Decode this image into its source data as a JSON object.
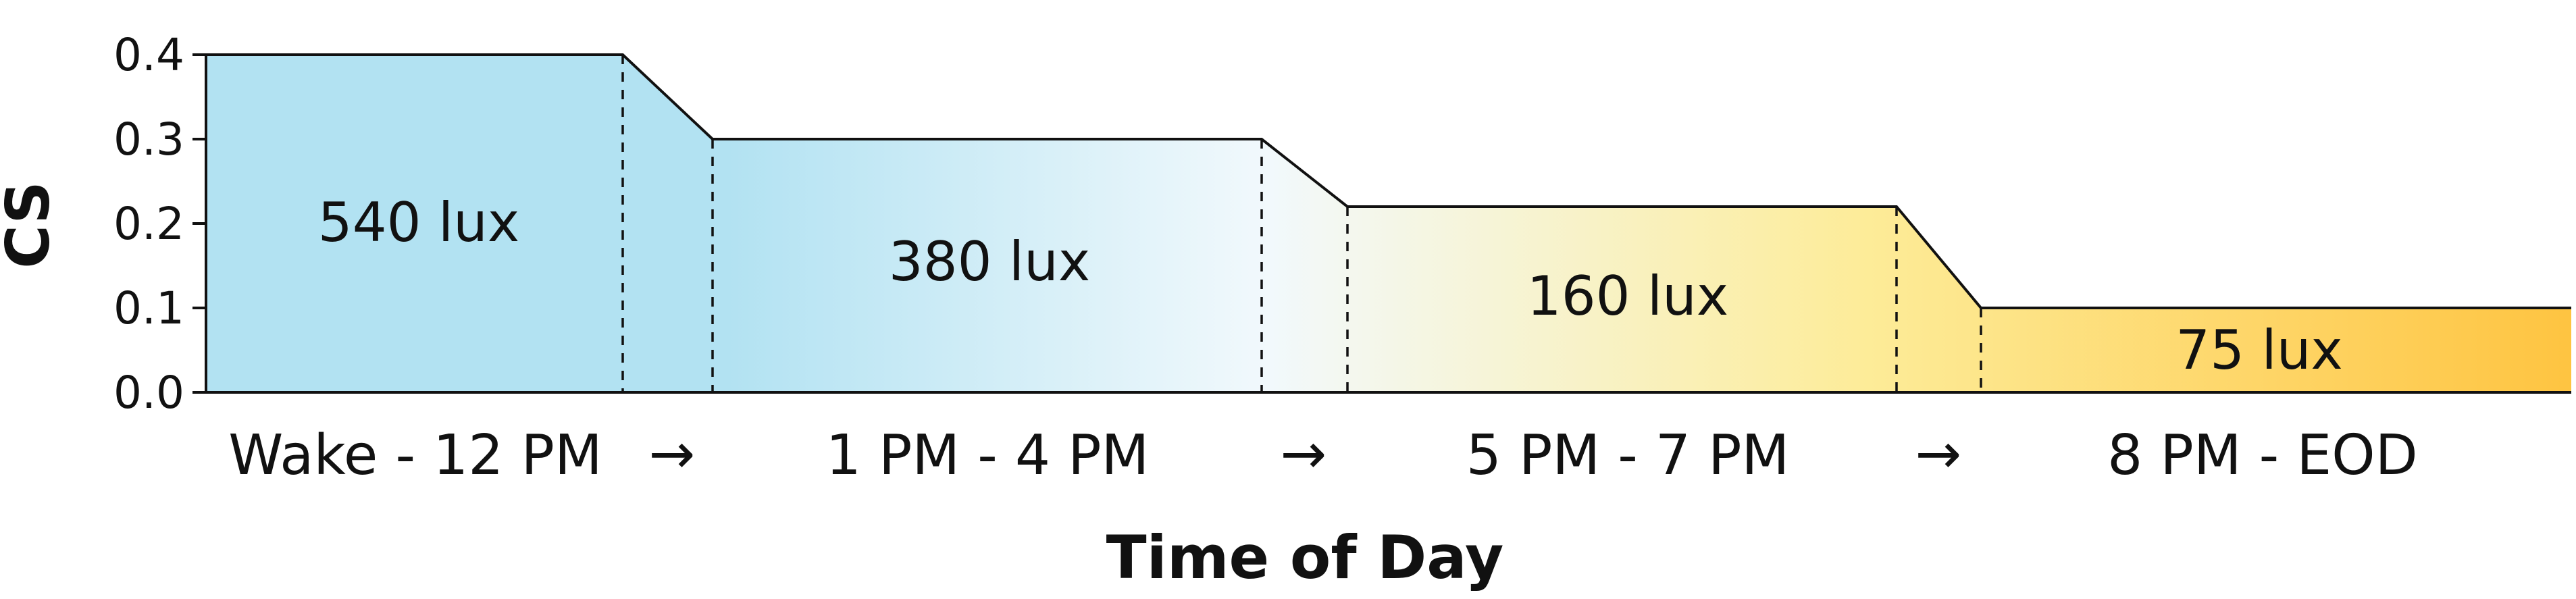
{
  "chart_data": {
    "type": "area",
    "title": "",
    "xlabel": "Time of Day",
    "ylabel": "CS",
    "ylim": [
      0,
      0.4
    ],
    "yticks": [
      "0.0",
      "0.1",
      "0.2",
      "0.3",
      "0.4"
    ],
    "grid": false,
    "segments": [
      {
        "label": "Wake - 12 PM",
        "cs": 0.4,
        "lux_label": "540 lux"
      },
      {
        "label": "1 PM - 4 PM",
        "cs": 0.3,
        "lux_label": "380 lux"
      },
      {
        "label": "5 PM - 7 PM",
        "cs": 0.22,
        "lux_label": "160 lux"
      },
      {
        "label": "8 PM - EOD",
        "cs": 0.1,
        "lux_label": "75 lux"
      }
    ],
    "transition_symbol": "→",
    "colors": {
      "morning": "#b2e2f2",
      "midday": "#f2f9fc",
      "afternoon": "#fdec99",
      "evening": "#fec441",
      "line": "#111111"
    }
  }
}
